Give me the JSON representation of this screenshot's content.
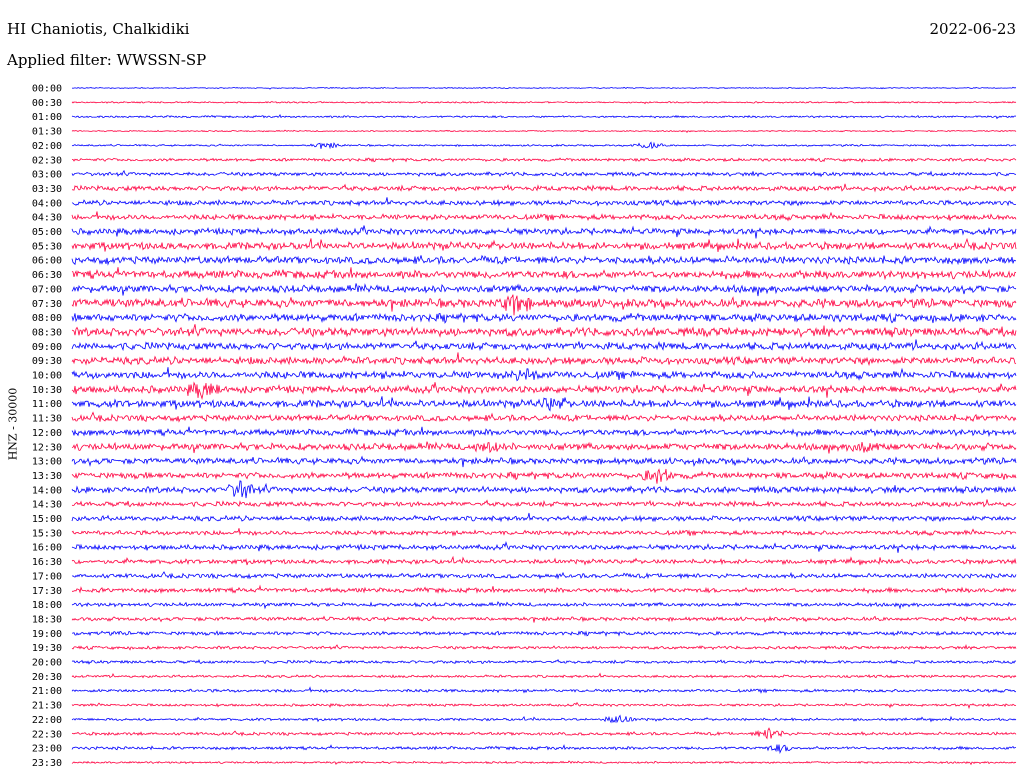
{
  "header": {
    "station": "HI Chaniotis, Chalkidiki",
    "date": "2022-06-23",
    "filter": "Applied filter: WWSSN-SP"
  },
  "chart_data": {
    "type": "line",
    "ylabel": "HNZ - 30000",
    "rows": [
      "00:00",
      "00:30",
      "01:00",
      "01:30",
      "02:00",
      "02:30",
      "03:00",
      "03:30",
      "04:00",
      "04:30",
      "05:00",
      "05:30",
      "06:00",
      "06:30",
      "07:00",
      "07:30",
      "08:00",
      "08:30",
      "09:00",
      "09:30",
      "10:00",
      "10:30",
      "11:00",
      "11:30",
      "12:00",
      "12:30",
      "13:00",
      "13:30",
      "14:00",
      "14:30",
      "15:00",
      "15:30",
      "16:00",
      "16:30",
      "17:00",
      "17:30",
      "18:00",
      "18:30",
      "19:00",
      "19:30",
      "20:00",
      "20:30",
      "21:00",
      "21:30",
      "22:00",
      "22:30",
      "23:00",
      "23:30"
    ],
    "colors": {
      "even_rows": "#0000ff",
      "odd_rows": "#ff0040"
    },
    "noise_level": [
      0.4,
      0.6,
      0.8,
      0.5,
      0.7,
      1.2,
      1.5,
      2.0,
      2.0,
      2.2,
      2.5,
      3.0,
      3.0,
      3.2,
      3.0,
      3.5,
      3.2,
      3.5,
      3.0,
      3.0,
      3.0,
      3.0,
      3.0,
      2.5,
      2.5,
      2.8,
      2.5,
      2.5,
      2.5,
      2.0,
      2.0,
      1.8,
      2.0,
      1.8,
      1.8,
      1.8,
      1.5,
      1.5,
      1.5,
      1.2,
      1.2,
      1.0,
      1.2,
      1.0,
      1.0,
      1.2,
      1.2,
      0.8
    ],
    "events": [
      {
        "row": "02:00",
        "at": 0.27,
        "amp": 2.5
      },
      {
        "row": "02:00",
        "at": 0.61,
        "amp": 3
      },
      {
        "row": "07:30",
        "at": 0.47,
        "amp": 9
      },
      {
        "row": "10:00",
        "at": 0.48,
        "amp": 5
      },
      {
        "row": "10:30",
        "at": 0.14,
        "amp": 7
      },
      {
        "row": "11:00",
        "at": 0.51,
        "amp": 5
      },
      {
        "row": "12:30",
        "at": 0.44,
        "amp": 4
      },
      {
        "row": "12:30",
        "at": 0.84,
        "amp": 5
      },
      {
        "row": "13:30",
        "at": 0.62,
        "amp": 7
      },
      {
        "row": "14:00",
        "at": 0.18,
        "amp": 8
      },
      {
        "row": "22:00",
        "at": 0.58,
        "amp": 4
      },
      {
        "row": "22:30",
        "at": 0.74,
        "amp": 5
      },
      {
        "row": "23:00",
        "at": 0.75,
        "amp": 3
      }
    ]
  }
}
